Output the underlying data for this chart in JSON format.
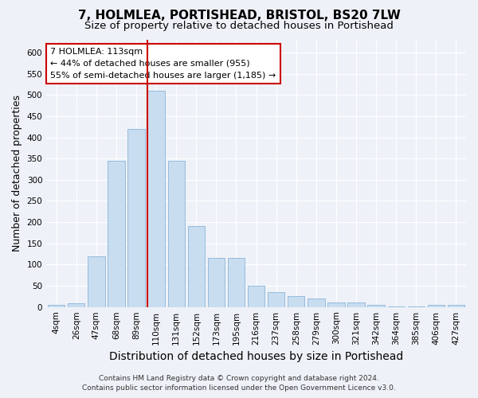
{
  "title": "7, HOLMLEA, PORTISHEAD, BRISTOL, BS20 7LW",
  "subtitle": "Size of property relative to detached houses in Portishead",
  "xlabel": "Distribution of detached houses by size in Portishead",
  "ylabel": "Number of detached properties",
  "footer_line1": "Contains HM Land Registry data © Crown copyright and database right 2024.",
  "footer_line2": "Contains public sector information licensed under the Open Government Licence v3.0.",
  "bar_labels": [
    "4sqm",
    "26sqm",
    "47sqm",
    "68sqm",
    "89sqm",
    "110sqm",
    "131sqm",
    "152sqm",
    "173sqm",
    "195sqm",
    "216sqm",
    "237sqm",
    "258sqm",
    "279sqm",
    "300sqm",
    "321sqm",
    "342sqm",
    "364sqm",
    "385sqm",
    "406sqm",
    "427sqm"
  ],
  "bar_values": [
    5,
    8,
    120,
    345,
    420,
    510,
    345,
    190,
    115,
    115,
    50,
    35,
    25,
    20,
    10,
    10,
    5,
    2,
    2,
    5,
    5
  ],
  "bar_color": "#c9ddf0",
  "bar_edge_color": "#8ab4d8",
  "vline_x": 5,
  "vline_color": "#cc0000",
  "annotation_text": "7 HOLMLEA: 113sqm\n← 44% of detached houses are smaller (955)\n55% of semi-detached houses are larger (1,185) →",
  "annotation_box_color": "#ffffff",
  "annotation_box_edge": "#cc0000",
  "ylim": [
    0,
    630
  ],
  "yticks": [
    0,
    50,
    100,
    150,
    200,
    250,
    300,
    350,
    400,
    450,
    500,
    550,
    600
  ],
  "background_color": "#eef2f8",
  "plot_background": "#eef2f8",
  "grid_color": "#ffffff",
  "title_fontsize": 11,
  "subtitle_fontsize": 9.5,
  "axis_label_fontsize": 9,
  "tick_fontsize": 7.5,
  "footer_fontsize": 6.5
}
